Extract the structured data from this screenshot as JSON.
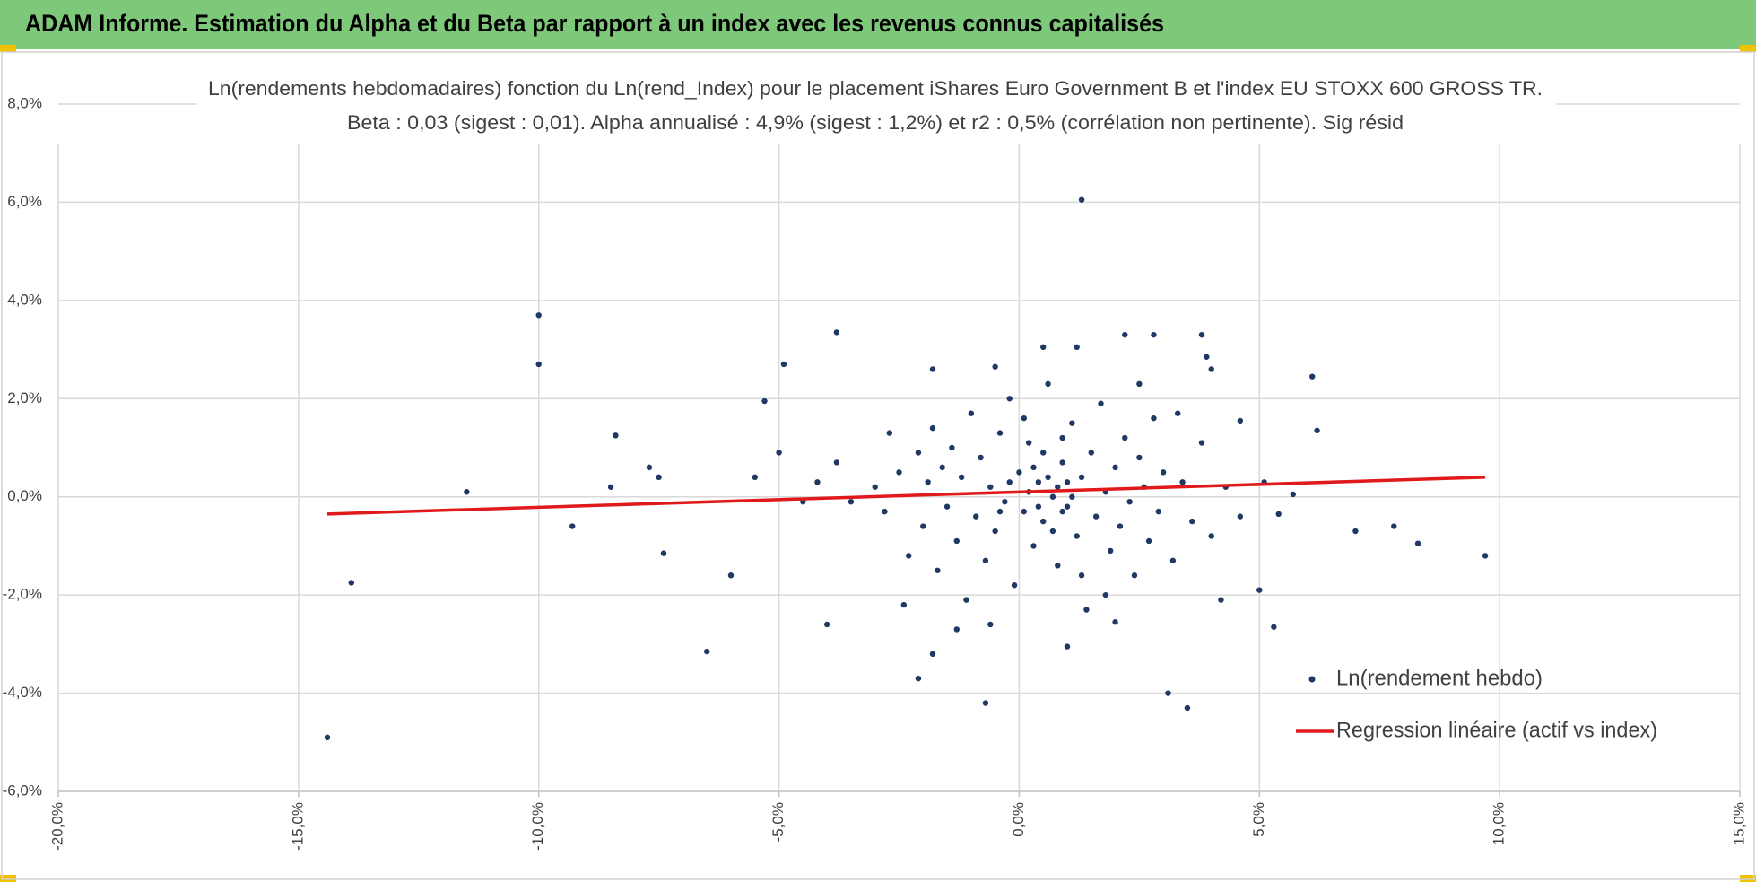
{
  "header": {
    "title": "ADAM Informe. Estimation du Alpha et du Beta par rapport à un index avec les revenus connus capitalisés"
  },
  "chart_data": {
    "type": "scatter",
    "title": "Ln(rendements hebdomadaires) fonction du Ln(rend_Index) pour le placement iShares Euro Government B et l'index EU STOXX 600 GROSS TR.",
    "subtitle": "Beta : 0,03 (sigest : 0,01).  Alpha annualisé : 4,9% (sigest : 1,2%) et r2 : 0,5% (corrélation non pertinente). Sig résid",
    "xlim": [
      -20,
      15
    ],
    "ylim": [
      -6,
      8
    ],
    "xticks": [
      {
        "value": -20,
        "label": "-20,0%"
      },
      {
        "value": -15,
        "label": "-15,0%"
      },
      {
        "value": -10,
        "label": "-10,0%"
      },
      {
        "value": -5,
        "label": "-5,0%"
      },
      {
        "value": 0,
        "label": "0,0%"
      },
      {
        "value": 5,
        "label": "5,0%"
      },
      {
        "value": 10,
        "label": "10,0%"
      },
      {
        "value": 15,
        "label": "15,0%"
      }
    ],
    "yticks": [
      {
        "value": -6,
        "label": "-6,0%"
      },
      {
        "value": -4,
        "label": "-4,0%"
      },
      {
        "value": -2,
        "label": "-2,0%"
      },
      {
        "value": 0,
        "label": "0,0%"
      },
      {
        "value": 2,
        "label": "2,0%"
      },
      {
        "value": 4,
        "label": "4,0%"
      },
      {
        "value": 6,
        "label": "6,0%"
      },
      {
        "value": 8,
        "label": "8,0%"
      }
    ],
    "grid": true,
    "legend": "bottom-right",
    "series": [
      {
        "name": "Ln(rendement hebdo)",
        "type": "scatter",
        "color": "#1f3864",
        "x": [
          -14.4,
          -13.9,
          -11.5,
          -10,
          -10,
          -9.3,
          -8.4,
          -8.5,
          -7.7,
          -7.4,
          -7.5,
          -6.5,
          -6,
          -5.3,
          -4.9,
          -3.8,
          -4,
          1.3,
          3.1,
          3.5,
          -0.7,
          -2.1,
          5.3,
          5,
          6.1,
          6.2,
          7,
          7.8,
          8.3,
          9.7,
          3.8,
          2.2,
          2.8,
          1.2,
          0.5,
          -1.8,
          -0.5,
          4.2,
          2,
          1,
          -1.8,
          -2.4,
          4.6,
          5.1,
          5.7,
          5.4,
          4,
          3.9,
          -3,
          -2.8,
          -2.5,
          -2.3,
          -2.1,
          -2,
          -1.9,
          -1.8,
          -1.7,
          -1.6,
          -1.5,
          -1.4,
          -1.3,
          -1.2,
          -1.1,
          -1,
          -0.9,
          -0.8,
          -0.7,
          -0.6,
          -0.5,
          -0.4,
          -0.3,
          -0.2,
          -0.1,
          0,
          0.1,
          0.2,
          0.3,
          0.4,
          0.5,
          0.6,
          0.7,
          0.8,
          0.9,
          1,
          1.1,
          1.2,
          1.3,
          1.4,
          1.5,
          1.6,
          1.7,
          1.8,
          1.9,
          2,
          2.1,
          2.2,
          2.3,
          2.4,
          2.5,
          2.6,
          2.7,
          2.8,
          2.9,
          3,
          3.2,
          3.4,
          3.6,
          3.8,
          4,
          4.3,
          4.6,
          -3.5,
          -3.8,
          -4.2,
          -4.5,
          -5,
          -5.5,
          0.2,
          0.4,
          0.6,
          0.8,
          1,
          0.3,
          0.5,
          0.7,
          0.9,
          1.1,
          -0.2,
          -0.4,
          0.1,
          0.9,
          1.3,
          -0.6,
          1.8,
          -1.3,
          2.5,
          -2.7,
          3.3
        ],
        "values": [
          -4.9,
          -1.75,
          0.1,
          3.7,
          2.7,
          -0.6,
          1.25,
          0.2,
          0.6,
          -1.15,
          0.4,
          -3.15,
          -1.6,
          1.95,
          2.7,
          3.35,
          -2.6,
          6.05,
          -4,
          -4.3,
          -4.2,
          -3.7,
          -2.65,
          -1.9,
          2.45,
          1.35,
          -0.7,
          -0.6,
          -0.95,
          -1.2,
          3.3,
          3.3,
          3.3,
          3.05,
          3.05,
          2.6,
          2.65,
          -2.1,
          -2.55,
          -3.05,
          -3.2,
          -2.2,
          1.55,
          0.3,
          0.05,
          -0.35,
          2.6,
          2.85,
          0.2,
          -0.3,
          0.5,
          -1.2,
          0.9,
          -0.6,
          0.3,
          1.4,
          -1.5,
          0.6,
          -0.2,
          1,
          -0.9,
          0.4,
          -2.1,
          1.7,
          -0.4,
          0.8,
          -1.3,
          0.2,
          -0.7,
          1.3,
          -0.1,
          2,
          -1.8,
          0.5,
          -0.3,
          1.1,
          -1,
          0.3,
          -0.5,
          2.3,
          0,
          -1.4,
          0.7,
          -0.2,
          1.5,
          -0.8,
          0.4,
          -2.3,
          0.9,
          -0.4,
          1.9,
          0.1,
          -1.1,
          0.6,
          -0.6,
          1.2,
          -0.1,
          -1.6,
          0.8,
          0.2,
          -0.9,
          1.6,
          -0.3,
          0.5,
          -1.3,
          0.3,
          -0.5,
          1.1,
          -0.8,
          0.2,
          -0.4,
          -0.1,
          0.7,
          0.3,
          -0.1,
          0.9,
          0.4,
          0.1,
          -0.2,
          0.4,
          0.2,
          0.3,
          0.6,
          0.9,
          -0.7,
          -0.3,
          0,
          0.3,
          -0.3,
          1.6,
          1.2,
          -1.6,
          -2.6,
          -2,
          -2.7,
          2.3,
          1.3,
          1.7
        ]
      },
      {
        "name": "Regression linéaire (actif vs index)",
        "type": "line",
        "color": "#e0191b",
        "x": [
          -14.4,
          9.7
        ],
        "values": [
          -0.35,
          0.4
        ]
      }
    ]
  }
}
